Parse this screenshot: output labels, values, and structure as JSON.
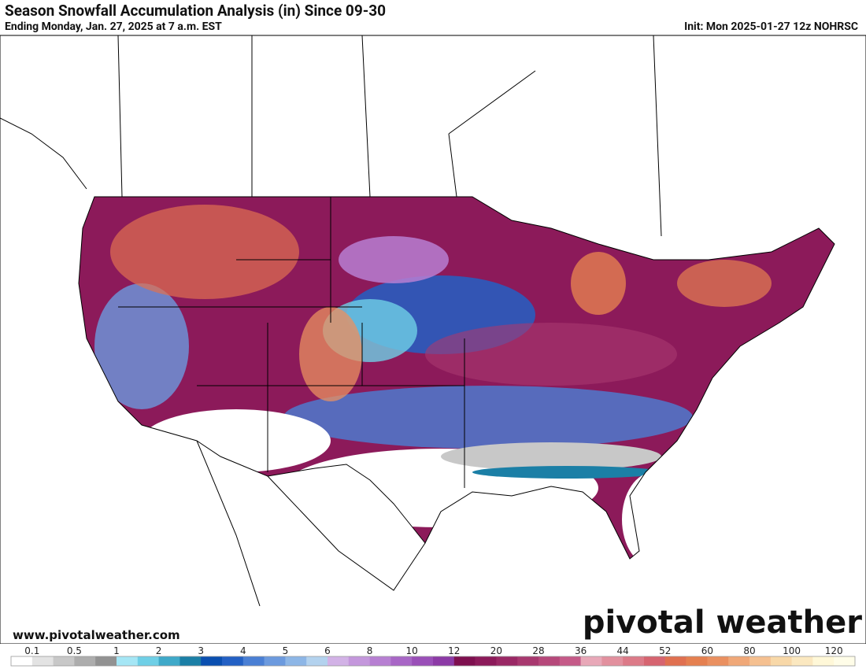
{
  "header": {
    "title": "Season Snowfall Accumulation Analysis (in) Since 09-30",
    "subtitle": "Ending Monday, Jan. 27, 2025 at 7 a.m. EST",
    "init": "Init: Mon 2025-01-27 12z NOHRSC"
  },
  "footer": {
    "website": "www.pivotalweather.com",
    "watermark": "pivotal weather"
  },
  "legend": {
    "labels": [
      "0.1",
      "0.5",
      "1",
      "2",
      "3",
      "4",
      "5",
      "6",
      "8",
      "10",
      "12",
      "20",
      "28",
      "36",
      "44",
      "52",
      "60",
      "80",
      "100",
      "120"
    ],
    "colors": [
      "#ffffff",
      "#e3e3e3",
      "#c8c8c8",
      "#adadad",
      "#929292",
      "#a5e6f5",
      "#6fcfe6",
      "#3fa9c9",
      "#1b7fa6",
      "#0a4fb0",
      "#2360c4",
      "#4a7fd4",
      "#6c9ade",
      "#8db6e6",
      "#b3d2ee",
      "#d2b2e6",
      "#c497dc",
      "#b77fd2",
      "#a866c6",
      "#9a4fb8",
      "#8c3aa6",
      "#7e0f4f",
      "#8c1a5a",
      "#9a2865",
      "#a8386f",
      "#b6487a",
      "#c55a88",
      "#e8a8b8",
      "#e2909e",
      "#dc7a88",
      "#d66470",
      "#e07050",
      "#e58050",
      "#ea9060",
      "#f0a878",
      "#f5c090",
      "#f8d8a8",
      "#fbe8c0",
      "#fff8d8",
      "#fffde8"
    ]
  }
}
